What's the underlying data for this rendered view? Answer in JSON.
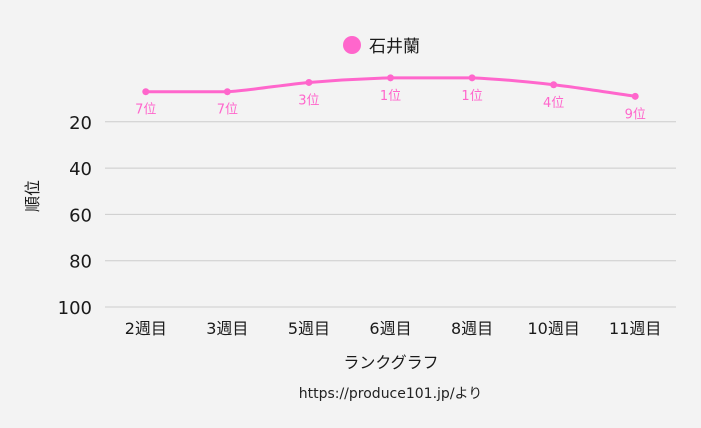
{
  "chart_data": {
    "type": "line",
    "title": "",
    "xlabel": "ランクグラフ",
    "ylabel": "順位",
    "categories": [
      "2週目",
      "3週目",
      "5週目",
      "6週目",
      "8週目",
      "10週目",
      "11週目"
    ],
    "series": [
      {
        "name": "石井蘭",
        "values": [
          7,
          7,
          3,
          1,
          1,
          4,
          9
        ],
        "data_labels": [
          "7位",
          "7位",
          "3位",
          "1位",
          "1位",
          "4位",
          "9位"
        ],
        "color": "#ff66cc"
      }
    ],
    "yticks": [
      "20",
      "40",
      "60",
      "80",
      "100"
    ],
    "ylim": [
      0,
      100
    ],
    "y_reversed": true,
    "grid": true,
    "legend": "top-center"
  },
  "source_note": "https://produce101.jp/より",
  "colors": {
    "series": "#ff66cc",
    "grid": "#cccccc",
    "background": "#f3f3f3"
  }
}
